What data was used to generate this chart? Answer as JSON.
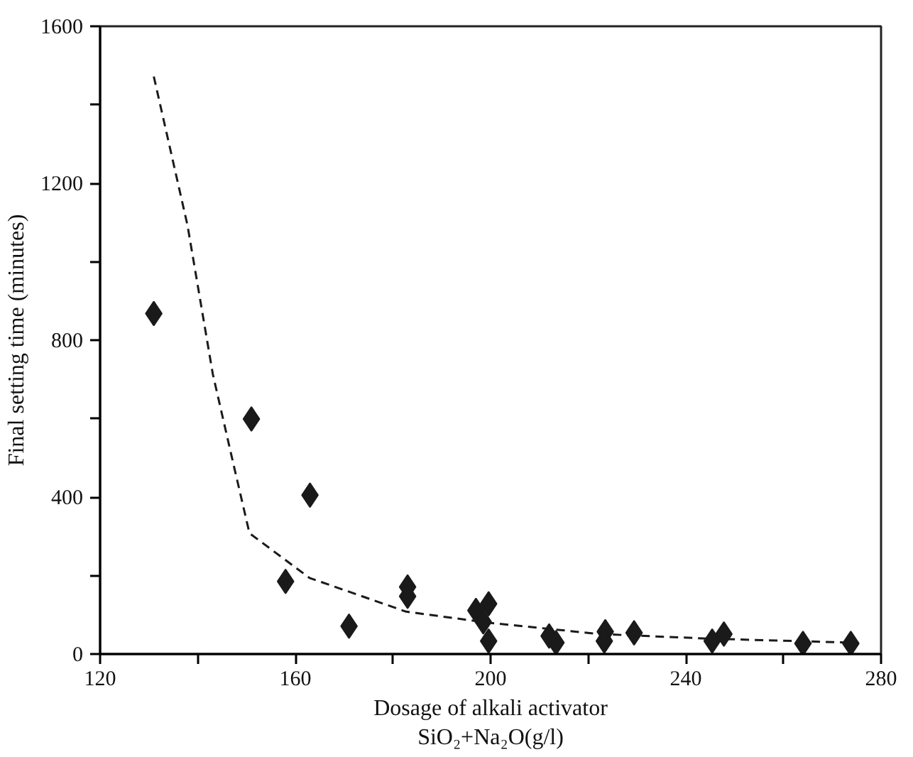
{
  "chart_data": {
    "type": "scatter",
    "xlabel": "Dosage of alkali activator\nSiO₂+Na₂O(g/l)",
    "ylabel": "Final setting time (minutes)",
    "xlim": [
      120,
      280
    ],
    "ylim": [
      0,
      1600
    ],
    "xticks": [
      120,
      {
        "value": 140,
        "label": null
      },
      160,
      {
        "value": 180,
        "label": null
      },
      200,
      {
        "value": 220,
        "label": null
      },
      240,
      {
        "value": 260,
        "label": null
      },
      280
    ],
    "yticks": [
      0,
      {
        "value": 200,
        "label": null
      },
      400,
      {
        "value": 600,
        "label": null
      },
      800,
      {
        "value": 1000,
        "label": null
      },
      1200,
      {
        "value": 1400,
        "label": null
      },
      1600
    ],
    "grid": false,
    "series": [
      {
        "marker": "diamond",
        "color": "#1a1a1a",
        "x": [
          131,
          151,
          163,
          158,
          171,
          183,
          183,
          197,
          199.6,
          198.5,
          199.6,
          212,
          213.4,
          223.5,
          223.3,
          229.4,
          245.4,
          247.8,
          264,
          273.8
        ],
        "values": [
          868,
          599,
          405,
          185,
          71,
          171,
          147,
          111,
          128,
          82,
          33,
          46,
          29,
          57,
          33,
          54,
          33,
          51,
          27,
          27
        ]
      },
      {
        "type": "line",
        "line_style": "dashed",
        "color": "#1a1a1a",
        "x": [
          131,
          137.9,
          143.1,
          147.3,
          150.6,
          162.9,
          182.7,
          199.4,
          222.3,
          245.2,
          274.4
        ],
        "values": [
          1472,
          1093,
          713,
          485,
          308,
          194,
          108,
          80,
          51,
          39,
          29
        ]
      }
    ]
  }
}
